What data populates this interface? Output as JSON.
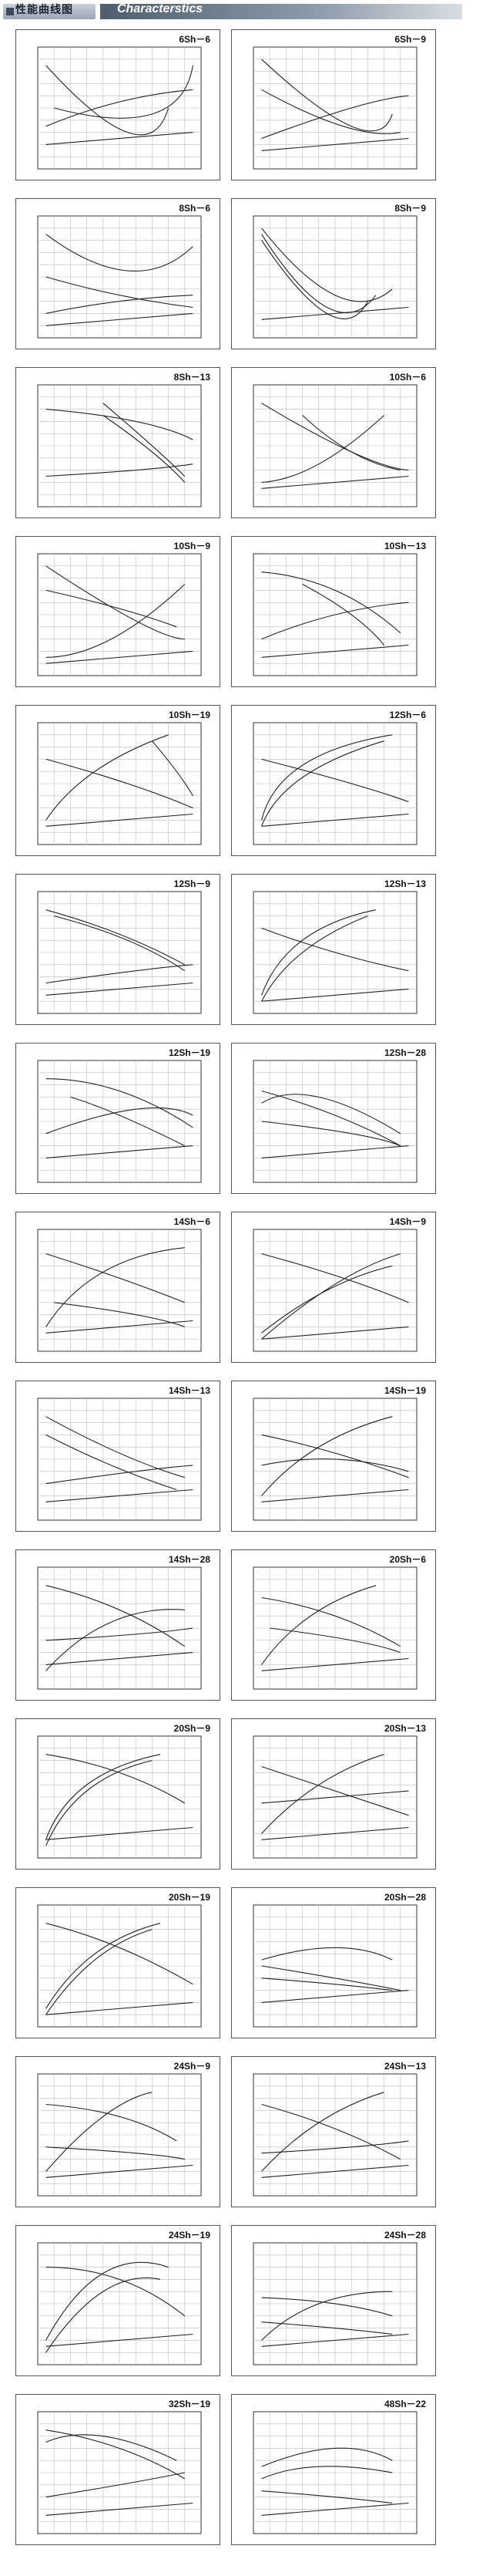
{
  "header": {
    "title_cn": "性能曲线图",
    "title_en": "Characterstics"
  },
  "chart_data": [
    {
      "type": "line",
      "title": "6Sh－6",
      "lines": [
        [
          0.05,
          0.85,
          0.55,
          0.3,
          0.8,
          0.5
        ],
        [
          0.1,
          0.5,
          0.7,
          0.45,
          0.95,
          0.85
        ],
        [
          0.05,
          0.35,
          0.5,
          0.55,
          0.95,
          0.65
        ],
        [
          0.05,
          0.2,
          0.5,
          0.25,
          0.95,
          0.3
        ]
      ]
    },
    {
      "type": "line",
      "title": "6Sh－9",
      "lines": [
        [
          0.05,
          0.9,
          0.6,
          0.35,
          0.85,
          0.45
        ],
        [
          0.05,
          0.65,
          0.55,
          0.35,
          0.9,
          0.3
        ],
        [
          0.05,
          0.25,
          0.6,
          0.5,
          0.95,
          0.6
        ],
        [
          0.05,
          0.15,
          0.5,
          0.2,
          0.95,
          0.25
        ]
      ]
    },
    {
      "type": "line",
      "title": "8Sh－6",
      "lines": [
        [
          0.05,
          0.5,
          0.5,
          0.35,
          0.95,
          0.25
        ],
        [
          0.05,
          0.85,
          0.55,
          0.55,
          0.95,
          0.75
        ],
        [
          0.05,
          0.2,
          0.5,
          0.3,
          0.95,
          0.35
        ],
        [
          0.05,
          0.1,
          0.5,
          0.15,
          0.95,
          0.2
        ]
      ]
    },
    {
      "type": "line",
      "title": "8Sh－9",
      "lines": [
        [
          0.05,
          0.9,
          0.5,
          0.35,
          0.85,
          0.4
        ],
        [
          0.05,
          0.85,
          0.45,
          0.25,
          0.75,
          0.35
        ],
        [
          0.05,
          0.8,
          0.45,
          0.2,
          0.7,
          0.3
        ],
        [
          0.05,
          0.15,
          0.5,
          0.2,
          0.95,
          0.25
        ]
      ]
    },
    {
      "type": "line",
      "title": "8Sh－13",
      "lines": [
        [
          0.05,
          0.8,
          0.6,
          0.7,
          0.95,
          0.55
        ],
        [
          0.4,
          0.85,
          0.7,
          0.5,
          0.9,
          0.25
        ],
        [
          0.4,
          0.75,
          0.7,
          0.45,
          0.9,
          0.2
        ],
        [
          0.05,
          0.25,
          0.6,
          0.3,
          0.95,
          0.35
        ]
      ]
    },
    {
      "type": "line",
      "title": "10Sh－6",
      "lines": [
        [
          0.05,
          0.85,
          0.6,
          0.45,
          0.95,
          0.3
        ],
        [
          0.05,
          0.2,
          0.4,
          0.35,
          0.8,
          0.75
        ],
        [
          0.05,
          0.15,
          0.5,
          0.2,
          0.95,
          0.25
        ],
        [
          0.3,
          0.75,
          0.6,
          0.45,
          0.9,
          0.3
        ]
      ]
    },
    {
      "type": "line",
      "title": "10Sh－9",
      "lines": [
        [
          0.05,
          0.9,
          0.6,
          0.45,
          0.9,
          0.3
        ],
        [
          0.05,
          0.15,
          0.45,
          0.3,
          0.9,
          0.75
        ],
        [
          0.05,
          0.1,
          0.5,
          0.15,
          0.95,
          0.2
        ],
        [
          0.05,
          0.7,
          0.5,
          0.55,
          0.85,
          0.4
        ]
      ]
    },
    {
      "type": "line",
      "title": "10Sh－13",
      "lines": [
        [
          0.05,
          0.85,
          0.5,
          0.7,
          0.9,
          0.35
        ],
        [
          0.3,
          0.75,
          0.6,
          0.5,
          0.8,
          0.25
        ],
        [
          0.05,
          0.3,
          0.5,
          0.5,
          0.95,
          0.6
        ],
        [
          0.05,
          0.15,
          0.5,
          0.2,
          0.95,
          0.25
        ]
      ]
    },
    {
      "type": "line",
      "title": "10Sh－19",
      "lines": [
        [
          0.05,
          0.2,
          0.35,
          0.6,
          0.8,
          0.9
        ],
        [
          0.05,
          0.7,
          0.55,
          0.5,
          0.95,
          0.3
        ],
        [
          0.05,
          0.15,
          0.5,
          0.2,
          0.95,
          0.25
        ],
        [
          0.7,
          0.85,
          0.85,
          0.6,
          0.95,
          0.4
        ]
      ]
    },
    {
      "type": "line",
      "title": "12Sh－6",
      "lines": [
        [
          0.05,
          0.2,
          0.3,
          0.65,
          0.85,
          0.9
        ],
        [
          0.05,
          0.15,
          0.3,
          0.55,
          0.8,
          0.85
        ],
        [
          0.05,
          0.7,
          0.6,
          0.5,
          0.95,
          0.35
        ],
        [
          0.05,
          0.15,
          0.5,
          0.2,
          0.95,
          0.25
        ]
      ]
    },
    {
      "type": "line",
      "title": "12Sh－9",
      "lines": [
        [
          0.05,
          0.85,
          0.5,
          0.65,
          0.9,
          0.4
        ],
        [
          0.1,
          0.8,
          0.55,
          0.6,
          0.9,
          0.35
        ],
        [
          0.05,
          0.25,
          0.6,
          0.35,
          0.95,
          0.4
        ],
        [
          0.05,
          0.15,
          0.5,
          0.2,
          0.95,
          0.25
        ]
      ]
    },
    {
      "type": "line",
      "title": "12Sh－13",
      "lines": [
        [
          0.05,
          0.15,
          0.3,
          0.6,
          0.75,
          0.85
        ],
        [
          0.05,
          0.1,
          0.3,
          0.5,
          0.7,
          0.8
        ],
        [
          0.05,
          0.7,
          0.5,
          0.5,
          0.95,
          0.35
        ],
        [
          0.05,
          0.1,
          0.5,
          0.15,
          0.95,
          0.2
        ]
      ]
    },
    {
      "type": "line",
      "title": "12Sh－19",
      "lines": [
        [
          0.05,
          0.85,
          0.5,
          0.75,
          0.95,
          0.45
        ],
        [
          0.2,
          0.7,
          0.5,
          0.55,
          0.9,
          0.3
        ],
        [
          0.05,
          0.4,
          0.6,
          0.6,
          0.95,
          0.55
        ],
        [
          0.05,
          0.2,
          0.5,
          0.25,
          0.95,
          0.3
        ]
      ]
    },
    {
      "type": "line",
      "title": "12Sh－28",
      "lines": [
        [
          0.05,
          0.75,
          0.5,
          0.55,
          0.9,
          0.3
        ],
        [
          0.05,
          0.65,
          0.4,
          0.7,
          0.9,
          0.4
        ],
        [
          0.05,
          0.5,
          0.6,
          0.4,
          0.9,
          0.3
        ],
        [
          0.05,
          0.2,
          0.5,
          0.25,
          0.95,
          0.3
        ]
      ]
    },
    {
      "type": "line",
      "title": "14Sh－6",
      "lines": [
        [
          0.05,
          0.2,
          0.4,
          0.65,
          0.9,
          0.85
        ],
        [
          0.05,
          0.8,
          0.5,
          0.6,
          0.9,
          0.4
        ],
        [
          0.1,
          0.4,
          0.6,
          0.3,
          0.9,
          0.2
        ],
        [
          0.05,
          0.15,
          0.5,
          0.2,
          0.95,
          0.25
        ]
      ]
    },
    {
      "type": "line",
      "title": "14Sh－9",
      "lines": [
        [
          0.05,
          0.1,
          0.5,
          0.55,
          0.9,
          0.8
        ],
        [
          0.05,
          0.15,
          0.45,
          0.5,
          0.85,
          0.7
        ],
        [
          0.05,
          0.8,
          0.55,
          0.6,
          0.95,
          0.4
        ],
        [
          0.05,
          0.1,
          0.5,
          0.15,
          0.95,
          0.2
        ]
      ]
    },
    {
      "type": "line",
      "title": "14Sh－13",
      "lines": [
        [
          0.05,
          0.85,
          0.5,
          0.55,
          0.9,
          0.35
        ],
        [
          0.05,
          0.7,
          0.45,
          0.45,
          0.85,
          0.25
        ],
        [
          0.05,
          0.3,
          0.6,
          0.4,
          0.95,
          0.45
        ],
        [
          0.05,
          0.15,
          0.5,
          0.2,
          0.95,
          0.25
        ]
      ]
    },
    {
      "type": "line",
      "title": "14Sh－19",
      "lines": [
        [
          0.05,
          0.2,
          0.4,
          0.6,
          0.85,
          0.85
        ],
        [
          0.05,
          0.7,
          0.5,
          0.55,
          0.95,
          0.35
        ],
        [
          0.05,
          0.45,
          0.5,
          0.5,
          0.95,
          0.4
        ],
        [
          0.05,
          0.15,
          0.5,
          0.2,
          0.95,
          0.25
        ]
      ]
    },
    {
      "type": "line",
      "title": "14Sh－28",
      "lines": [
        [
          0.05,
          0.85,
          0.5,
          0.65,
          0.9,
          0.35
        ],
        [
          0.05,
          0.15,
          0.45,
          0.55,
          0.9,
          0.65
        ],
        [
          0.05,
          0.4,
          0.6,
          0.45,
          0.95,
          0.5
        ],
        [
          0.05,
          0.2,
          0.5,
          0.25,
          0.95,
          0.3
        ]
      ]
    },
    {
      "type": "line",
      "title": "20Sh－6",
      "lines": [
        [
          0.05,
          0.2,
          0.35,
          0.6,
          0.75,
          0.85
        ],
        [
          0.05,
          0.75,
          0.5,
          0.6,
          0.9,
          0.35
        ],
        [
          0.1,
          0.5,
          0.6,
          0.4,
          0.9,
          0.3
        ],
        [
          0.05,
          0.15,
          0.5,
          0.2,
          0.95,
          0.25
        ]
      ]
    },
    {
      "type": "line",
      "title": "20Sh－9",
      "lines": [
        [
          0.05,
          0.85,
          0.5,
          0.7,
          0.9,
          0.45
        ],
        [
          0.05,
          0.15,
          0.3,
          0.6,
          0.75,
          0.85
        ],
        [
          0.05,
          0.1,
          0.3,
          0.55,
          0.7,
          0.8
        ],
        [
          0.05,
          0.15,
          0.5,
          0.2,
          0.95,
          0.25
        ]
      ]
    },
    {
      "type": "line",
      "title": "20Sh－13",
      "lines": [
        [
          0.05,
          0.2,
          0.4,
          0.6,
          0.8,
          0.85
        ],
        [
          0.05,
          0.75,
          0.5,
          0.55,
          0.95,
          0.35
        ],
        [
          0.05,
          0.45,
          0.5,
          0.5,
          0.95,
          0.55
        ],
        [
          0.05,
          0.15,
          0.5,
          0.2,
          0.95,
          0.25
        ]
      ]
    },
    {
      "type": "line",
      "title": "20Sh－19",
      "lines": [
        [
          0.05,
          0.15,
          0.35,
          0.6,
          0.75,
          0.85
        ],
        [
          0.05,
          0.1,
          0.35,
          0.55,
          0.7,
          0.8
        ],
        [
          0.05,
          0.85,
          0.5,
          0.65,
          0.95,
          0.35
        ],
        [
          0.05,
          0.1,
          0.5,
          0.15,
          0.95,
          0.2
        ]
      ]
    },
    {
      "type": "line",
      "title": "20Sh－28",
      "lines": [
        [
          0.05,
          0.55,
          0.5,
          0.65,
          0.85,
          0.55
        ],
        [
          0.05,
          0.5,
          0.5,
          0.4,
          0.9,
          0.3
        ],
        [
          0.05,
          0.4,
          0.5,
          0.35,
          0.85,
          0.3
        ],
        [
          0.05,
          0.2,
          0.5,
          0.25,
          0.95,
          0.3
        ]
      ]
    },
    {
      "type": "line",
      "title": "24Sh－9",
      "lines": [
        [
          0.05,
          0.2,
          0.4,
          0.65,
          0.7,
          0.85
        ],
        [
          0.05,
          0.75,
          0.5,
          0.65,
          0.85,
          0.45
        ],
        [
          0.05,
          0.4,
          0.6,
          0.35,
          0.9,
          0.3
        ],
        [
          0.05,
          0.15,
          0.5,
          0.2,
          0.95,
          0.25
        ]
      ]
    },
    {
      "type": "line",
      "title": "24Sh－13",
      "lines": [
        [
          0.05,
          0.2,
          0.4,
          0.6,
          0.8,
          0.85
        ],
        [
          0.05,
          0.75,
          0.5,
          0.55,
          0.9,
          0.3
        ],
        [
          0.05,
          0.35,
          0.6,
          0.4,
          0.95,
          0.45
        ],
        [
          0.05,
          0.15,
          0.5,
          0.2,
          0.95,
          0.25
        ]
      ]
    },
    {
      "type": "line",
      "title": "24Sh－19",
      "lines": [
        [
          0.05,
          0.8,
          0.5,
          0.7,
          0.9,
          0.4
        ],
        [
          0.05,
          0.2,
          0.4,
          0.75,
          0.8,
          0.8
        ],
        [
          0.05,
          0.1,
          0.4,
          0.6,
          0.75,
          0.7
        ],
        [
          0.05,
          0.15,
          0.5,
          0.2,
          0.95,
          0.25
        ]
      ]
    },
    {
      "type": "line",
      "title": "24Sh－28",
      "lines": [
        [
          0.05,
          0.55,
          0.5,
          0.5,
          0.85,
          0.4
        ],
        [
          0.05,
          0.2,
          0.4,
          0.5,
          0.85,
          0.6
        ],
        [
          0.05,
          0.35,
          0.5,
          0.3,
          0.85,
          0.25
        ],
        [
          0.05,
          0.15,
          0.5,
          0.2,
          0.95,
          0.25
        ]
      ]
    },
    {
      "type": "line",
      "title": "32Sh－19",
      "lines": [
        [
          0.05,
          0.85,
          0.5,
          0.7,
          0.9,
          0.45
        ],
        [
          0.05,
          0.75,
          0.4,
          0.8,
          0.85,
          0.6
        ],
        [
          0.05,
          0.3,
          0.5,
          0.4,
          0.9,
          0.5
        ],
        [
          0.05,
          0.15,
          0.5,
          0.2,
          0.95,
          0.25
        ]
      ]
    },
    {
      "type": "line",
      "title": "48Sh－22",
      "lines": [
        [
          0.05,
          0.55,
          0.5,
          0.7,
          0.85,
          0.6
        ],
        [
          0.05,
          0.45,
          0.4,
          0.55,
          0.85,
          0.5
        ],
        [
          0.05,
          0.35,
          0.5,
          0.3,
          0.85,
          0.25
        ],
        [
          0.05,
          0.15,
          0.5,
          0.2,
          0.95,
          0.25
        ]
      ]
    }
  ]
}
